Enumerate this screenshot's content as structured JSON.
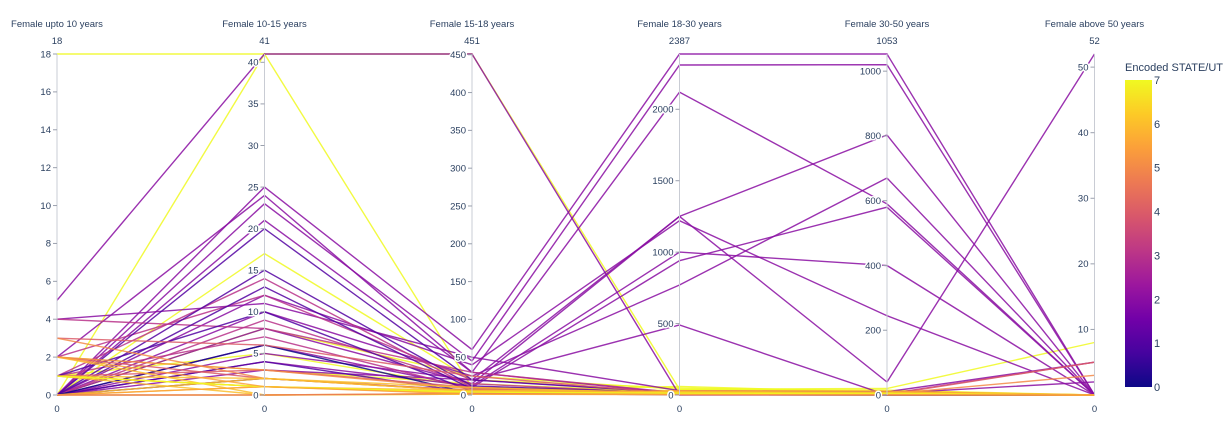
{
  "chart_data": {
    "type": "parallel_coordinates",
    "colorbar": {
      "title": "Encoded STATE/UT",
      "range": [
        0,
        7
      ],
      "ticks": [
        "0",
        "1",
        "2",
        "3",
        "4",
        "5",
        "6",
        "7"
      ],
      "colorscale": [
        "#0d0887",
        "#46039f",
        "#7201a8",
        "#9c179e",
        "#bd3786",
        "#d8576b",
        "#ed7953",
        "#fb9f3a",
        "#fdca26",
        "#f0f921"
      ]
    },
    "axes": [
      {
        "label": "Female upto 10 years",
        "max_label": "18",
        "min_label": "0",
        "range": [
          0,
          18
        ],
        "ticks": [
          {
            "v": 0,
            "t": "0"
          },
          {
            "v": 2,
            "t": "2"
          },
          {
            "v": 4,
            "t": "4"
          },
          {
            "v": 6,
            "t": "6"
          },
          {
            "v": 8,
            "t": "8"
          },
          {
            "v": 10,
            "t": "10"
          },
          {
            "v": 12,
            "t": "12"
          },
          {
            "v": 14,
            "t": "14"
          },
          {
            "v": 16,
            "t": "16"
          },
          {
            "v": 18,
            "t": "18"
          }
        ]
      },
      {
        "label": "Female 10-15 years",
        "max_label": "41",
        "min_label": "0",
        "range": [
          0,
          41
        ],
        "ticks": [
          {
            "v": 0,
            "t": "0"
          },
          {
            "v": 5,
            "t": "5"
          },
          {
            "v": 10,
            "t": "10"
          },
          {
            "v": 15,
            "t": "15"
          },
          {
            "v": 20,
            "t": "20"
          },
          {
            "v": 25,
            "t": "25"
          },
          {
            "v": 30,
            "t": "30"
          },
          {
            "v": 35,
            "t": "35"
          },
          {
            "v": 40,
            "t": "40"
          }
        ]
      },
      {
        "label": "Female 15-18 years",
        "max_label": "451",
        "min_label": "0",
        "range": [
          0,
          451
        ],
        "ticks": [
          {
            "v": 0,
            "t": "0"
          },
          {
            "v": 50,
            "t": "50"
          },
          {
            "v": 100,
            "t": "100"
          },
          {
            "v": 150,
            "t": "150"
          },
          {
            "v": 200,
            "t": "200"
          },
          {
            "v": 250,
            "t": "250"
          },
          {
            "v": 300,
            "t": "300"
          },
          {
            "v": 350,
            "t": "350"
          },
          {
            "v": 400,
            "t": "400"
          },
          {
            "v": 450,
            "t": "450"
          }
        ]
      },
      {
        "label": "Female 18-30 years",
        "max_label": "2387",
        "min_label": "0",
        "range": [
          0,
          2387
        ],
        "ticks": [
          {
            "v": 0,
            "t": "0"
          },
          {
            "v": 500,
            "t": "500"
          },
          {
            "v": 1000,
            "t": "1000"
          },
          {
            "v": 1500,
            "t": "1500"
          },
          {
            "v": 2000,
            "t": "2000"
          }
        ]
      },
      {
        "label": "Female 30-50 years",
        "max_label": "1053",
        "min_label": "0",
        "range": [
          0,
          1053
        ],
        "ticks": [
          {
            "v": 0,
            "t": "0"
          },
          {
            "v": 200,
            "t": "200"
          },
          {
            "v": 400,
            "t": "400"
          },
          {
            "v": 600,
            "t": "600"
          },
          {
            "v": 800,
            "t": "800"
          },
          {
            "v": 1000,
            "t": "1000"
          }
        ]
      },
      {
        "label": "Female above 50 years",
        "max_label": "52",
        "min_label": "0",
        "range": [
          0,
          52
        ],
        "ticks": [
          {
            "v": 10,
            "t": "10"
          },
          {
            "v": 20,
            "t": "20"
          },
          {
            "v": 30,
            "t": "30"
          },
          {
            "v": 40,
            "t": "40"
          },
          {
            "v": 50,
            "t": "50"
          }
        ]
      }
    ],
    "lines": [
      {
        "c": 7,
        "v": [
          18,
          41,
          451,
          40,
          15,
          0
        ]
      },
      {
        "c": 7,
        "v": [
          0,
          41,
          10,
          30,
          12,
          0
        ]
      },
      {
        "c": 7,
        "v": [
          0,
          17,
          20,
          50,
          10,
          0
        ]
      },
      {
        "c": 7,
        "v": [
          0,
          8,
          25,
          40,
          20,
          8
        ]
      },
      {
        "c": 7,
        "v": [
          2,
          3,
          15,
          20,
          10,
          0
        ]
      },
      {
        "c": 7,
        "v": [
          1,
          5,
          10,
          20,
          5,
          0
        ]
      },
      {
        "c": 7,
        "v": [
          0,
          2,
          5,
          60,
          8,
          0
        ]
      },
      {
        "c": 2,
        "v": [
          5,
          41,
          451,
          0,
          0,
          0
        ]
      },
      {
        "c": 2,
        "v": [
          0,
          25,
          60,
          2387,
          1053,
          0
        ]
      },
      {
        "c": 2,
        "v": [
          0,
          23,
          45,
          2310,
          1020,
          0
        ]
      },
      {
        "c": 2,
        "v": [
          0,
          21,
          30,
          2120,
          590,
          0
        ]
      },
      {
        "c": 2,
        "v": [
          0,
          3,
          20,
          1250,
          803,
          0
        ]
      },
      {
        "c": 2,
        "v": [
          0,
          10,
          25,
          770,
          670,
          0
        ]
      },
      {
        "c": 2,
        "v": [
          0,
          12,
          40,
          1220,
          245,
          0
        ]
      },
      {
        "c": 2,
        "v": [
          0,
          6,
          10,
          940,
          580,
          0
        ]
      },
      {
        "c": 2,
        "v": [
          0,
          8,
          15,
          1250,
          40,
          52
        ]
      },
      {
        "c": 2,
        "v": [
          0,
          5,
          20,
          490,
          0,
          0
        ]
      },
      {
        "c": 2,
        "v": [
          0,
          4,
          12,
          1000,
          400,
          0
        ]
      },
      {
        "c": 2,
        "v": [
          4,
          11,
          50,
          30,
          10,
          5
        ]
      },
      {
        "c": 2,
        "v": [
          2,
          24,
          30,
          10,
          5,
          2
        ]
      },
      {
        "c": 3,
        "v": [
          4,
          8,
          30,
          15,
          5,
          0
        ]
      },
      {
        "c": 3,
        "v": [
          2,
          12,
          20,
          20,
          5,
          0
        ]
      },
      {
        "c": 3,
        "v": [
          1,
          14,
          10,
          10,
          3,
          5
        ]
      },
      {
        "c": 3,
        "v": [
          0,
          9,
          15,
          8,
          2,
          0
        ]
      },
      {
        "c": 3,
        "v": [
          1,
          7,
          8,
          5,
          1,
          0
        ]
      },
      {
        "c": 1,
        "v": [
          0,
          20,
          20,
          15,
          5,
          0
        ]
      },
      {
        "c": 1,
        "v": [
          0,
          15,
          12,
          12,
          4,
          0
        ]
      },
      {
        "c": 1,
        "v": [
          0,
          13,
          8,
          8,
          2,
          0
        ]
      },
      {
        "c": 1,
        "v": [
          1,
          10,
          5,
          5,
          1,
          0
        ]
      },
      {
        "c": 1,
        "v": [
          0,
          4,
          3,
          3,
          1,
          0
        ]
      },
      {
        "c": 1,
        "v": [
          0,
          2,
          6,
          6,
          2,
          0
        ]
      },
      {
        "c": 0,
        "v": [
          0,
          6,
          2,
          2,
          0,
          0
        ]
      },
      {
        "c": 4,
        "v": [
          3,
          6,
          25,
          8,
          4,
          0
        ]
      },
      {
        "c": 4,
        "v": [
          1,
          3,
          10,
          4,
          1,
          5
        ]
      },
      {
        "c": 4,
        "v": [
          2,
          2,
          5,
          3,
          2,
          0
        ]
      },
      {
        "c": 5,
        "v": [
          2,
          3,
          8,
          10,
          3,
          3
        ]
      },
      {
        "c": 5,
        "v": [
          1,
          1,
          4,
          6,
          2,
          0
        ]
      },
      {
        "c": 5,
        "v": [
          3,
          2,
          6,
          5,
          1,
          0
        ]
      },
      {
        "c": 6,
        "v": [
          1,
          2,
          5,
          20,
          6,
          0
        ]
      },
      {
        "c": 6,
        "v": [
          0,
          1,
          3,
          15,
          4,
          0
        ]
      },
      {
        "c": 6,
        "v": [
          2,
          0,
          2,
          10,
          3,
          0
        ]
      },
      {
        "c": 6,
        "v": [
          1,
          1,
          6,
          25,
          8,
          0
        ]
      },
      {
        "c": 6,
        "v": [
          0,
          2,
          10,
          12,
          5,
          0
        ]
      },
      {
        "c": 6,
        "v": [
          1,
          0,
          1,
          8,
          2,
          0
        ]
      },
      {
        "c": 5.5,
        "v": [
          0,
          1,
          2,
          30,
          12,
          0
        ]
      },
      {
        "c": 6.5,
        "v": [
          1,
          1,
          3,
          18,
          6,
          0
        ]
      },
      {
        "c": 6.5,
        "v": [
          0,
          0,
          1,
          5,
          1,
          0
        ]
      },
      {
        "c": 7,
        "v": [
          1,
          1,
          4,
          10,
          3,
          0
        ]
      },
      {
        "c": 4.5,
        "v": [
          0,
          0,
          2,
          3,
          1,
          0
        ]
      },
      {
        "c": 5.5,
        "v": [
          2,
          1,
          1,
          2,
          0,
          0
        ]
      }
    ]
  }
}
